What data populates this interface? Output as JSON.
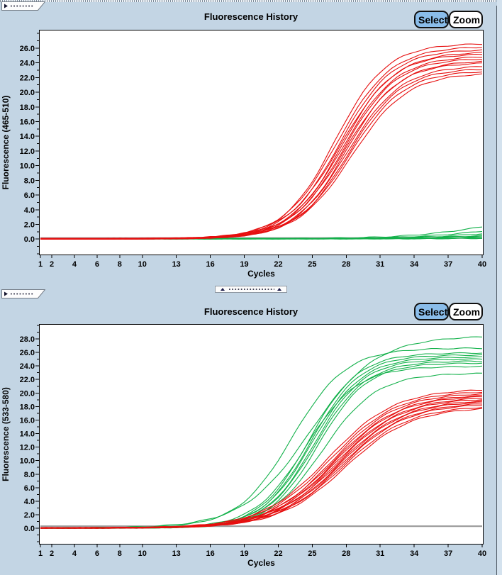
{
  "ui": {
    "buttons": {
      "select": "Select",
      "zoom": "Zoom"
    },
    "colors": {
      "background": "#c3d5e4",
      "select_button_fill": "#8abdea",
      "zoom_button_fill": "#ffffff",
      "plot_background": "#ffffff",
      "red_series": "#e60f0f",
      "green_series": "#12b14a",
      "gray_baseline": "#9a9a9a"
    },
    "widgets": {
      "top_tab": "collapse-tab-handle",
      "middle_tab": "collapse-tab-handle",
      "splitter": "horizontal-splitter-handle"
    }
  },
  "chart_data": [
    {
      "type": "line",
      "title": "Fluorescence History",
      "xlabel": "Cycles",
      "ylabel": "Fluorescence (465-510)",
      "x_range": [
        1,
        40
      ],
      "x_ticks": [
        1,
        2,
        4,
        6,
        8,
        10,
        13,
        16,
        19,
        22,
        25,
        28,
        31,
        34,
        37,
        40
      ],
      "y_range": [
        -2.2,
        28.5
      ],
      "y_tick_step": 2,
      "y_minor_step": 1,
      "y_label_max": 26,
      "grid": false,
      "legend": "none",
      "curve_model": "logistic: value(cycle) = base + amp / (1 + exp(-k*(cycle-mid)))",
      "curve_format": [
        "amp",
        "mid_cycle",
        "k"
      ],
      "series_groups": [
        {
          "name": "flat-gray-baseline",
          "color": "#9a9a9a",
          "width": 2.2,
          "base": 0.15,
          "noise": 0,
          "curves": [
            [
              0,
              0,
              1
            ]
          ]
        },
        {
          "name": "green-channel-negatives-late-rise",
          "color": "#12b14a",
          "width": 1.1,
          "base": 0.05,
          "noise": 0.06,
          "curves": [
            [
              3.2,
              40,
              0.28
            ],
            [
              2.4,
              41,
              0.28
            ],
            [
              1.9,
              42,
              0.28
            ],
            [
              1.5,
              43,
              0.28
            ],
            [
              1.2,
              44,
              0.28
            ],
            [
              0.9,
              45,
              0.28
            ],
            [
              0.7,
              46,
              0.28
            ],
            [
              0.5,
              47,
              0.28
            ]
          ]
        },
        {
          "name": "red-channel-positives",
          "color": "#e60f0f",
          "width": 1.1,
          "base": 0.05,
          "noise": 0.07,
          "curves": [
            [
              26.6,
              27.0,
              0.44
            ],
            [
              26.2,
              27.2,
              0.42
            ],
            [
              25.8,
              27.4,
              0.43
            ],
            [
              25.5,
              27.5,
              0.41
            ],
            [
              25.2,
              27.6,
              0.44
            ],
            [
              24.9,
              27.7,
              0.42
            ],
            [
              24.6,
              27.8,
              0.43
            ],
            [
              24.3,
              27.9,
              0.41
            ],
            [
              24.0,
              28.0,
              0.44
            ],
            [
              23.6,
              28.1,
              0.42
            ],
            [
              23.2,
              28.2,
              0.43
            ],
            [
              22.9,
              28.3,
              0.42
            ],
            [
              22.6,
              28.5,
              0.41
            ]
          ]
        }
      ]
    },
    {
      "type": "line",
      "title": "Fluorescence History",
      "xlabel": "Cycles",
      "ylabel": "Fluorescence (533-580)",
      "x_range": [
        1,
        40
      ],
      "x_ticks": [
        1,
        2,
        4,
        6,
        8,
        10,
        13,
        16,
        19,
        22,
        25,
        28,
        31,
        34,
        37,
        40
      ],
      "y_range": [
        -2.4,
        30.2
      ],
      "y_tick_step": 2,
      "y_minor_step": 1,
      "y_label_max": 28,
      "grid": false,
      "legend": "none",
      "curve_model": "logistic: value(cycle) = base + amp / (1 + exp(-k*(cycle-mid)))",
      "curve_format": [
        "amp",
        "mid_cycle",
        "k"
      ],
      "series_groups": [
        {
          "name": "flat-gray-baseline",
          "color": "#9a9a9a",
          "width": 2.2,
          "base": 0.3,
          "noise": 0,
          "curves": [
            [
              0,
              0,
              1
            ]
          ]
        },
        {
          "name": "green-channel-positives",
          "color": "#12b14a",
          "width": 1.1,
          "base": 0.05,
          "noise": 0.07,
          "curves": [
            [
              28.4,
              24.8,
              0.34
            ],
            [
              26.6,
              23.2,
              0.42
            ],
            [
              25.9,
              24.7,
              0.46
            ],
            [
              25.6,
              24.9,
              0.46
            ],
            [
              25.3,
              25.0,
              0.45
            ],
            [
              25.0,
              25.2,
              0.46
            ],
            [
              24.7,
              25.3,
              0.45
            ],
            [
              24.4,
              25.5,
              0.46
            ],
            [
              23.9,
              24.4,
              0.44
            ],
            [
              22.9,
              25.9,
              0.42
            ]
          ]
        },
        {
          "name": "red-channel-positives",
          "color": "#e60f0f",
          "width": 1.1,
          "base": 0.05,
          "noise": 0.07,
          "curves": [
            [
              20.6,
              26.4,
              0.34
            ],
            [
              20.3,
              26.6,
              0.34
            ],
            [
              20.0,
              26.8,
              0.35
            ],
            [
              19.8,
              26.9,
              0.34
            ],
            [
              19.6,
              27.0,
              0.35
            ],
            [
              19.4,
              27.1,
              0.34
            ],
            [
              19.2,
              27.2,
              0.35
            ],
            [
              19.0,
              27.3,
              0.34
            ],
            [
              18.8,
              27.4,
              0.35
            ],
            [
              18.6,
              27.5,
              0.34
            ],
            [
              18.4,
              27.6,
              0.35
            ],
            [
              18.1,
              27.7,
              0.34
            ],
            [
              17.9,
              27.9,
              0.34
            ]
          ]
        }
      ]
    }
  ]
}
